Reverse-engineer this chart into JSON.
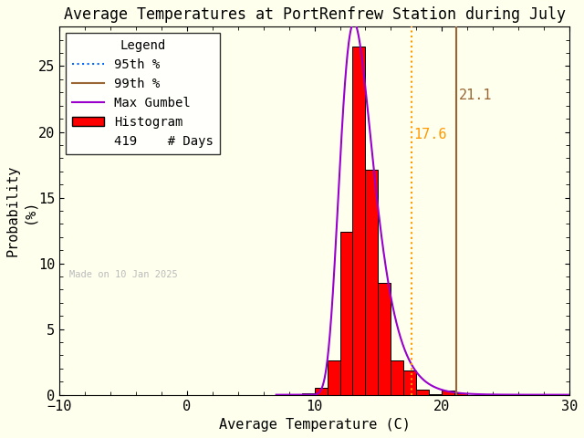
{
  "title": "Average Temperatures at PortRenfrew Station during July",
  "xlabel": "Average Temperature (C)",
  "ylabel": "Probability\n(%)",
  "xlim": [
    -10,
    30
  ],
  "ylim": [
    0,
    28
  ],
  "xticks": [
    -10,
    0,
    10,
    20,
    30
  ],
  "yticks": [
    0,
    5,
    10,
    15,
    20,
    25
  ],
  "bar_color": "#ff0000",
  "bar_edge_color": "#000000",
  "gumbel_color": "#9900cc",
  "p95_color": "#ff9900",
  "p99_color": "#996633",
  "p95_value": 17.6,
  "p99_value": 21.1,
  "n_days": 419,
  "watermark": "Made on 10 Jan 2025",
  "watermark_color": "#bbbbbb",
  "bin_edges": [
    9.0,
    10.0,
    11.0,
    12.0,
    13.0,
    14.0,
    15.0,
    16.0,
    17.0,
    18.0,
    19.0,
    20.0,
    21.0,
    22.0
  ],
  "bin_heights": [
    0.12,
    0.5,
    2.6,
    12.4,
    26.5,
    17.1,
    8.5,
    2.6,
    1.85,
    0.4,
    0.05,
    0.35,
    0.12
  ],
  "background_color": "#ffffee",
  "title_fontsize": 12,
  "axis_fontsize": 11,
  "tick_fontsize": 11,
  "legend_fontsize": 10,
  "gumbel_mu": 13.1,
  "gumbel_beta": 1.3
}
